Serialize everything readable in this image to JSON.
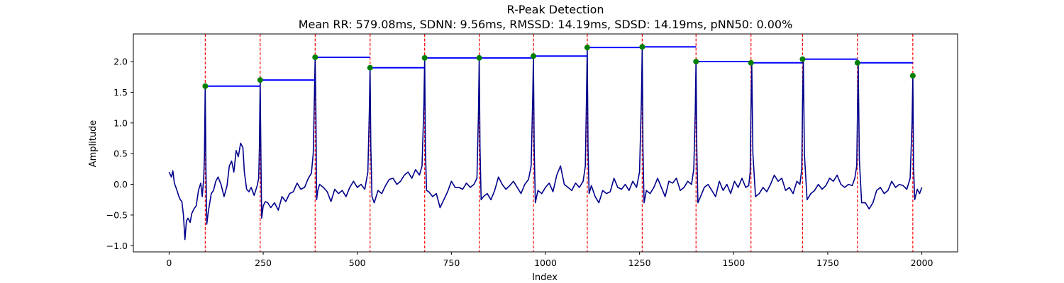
{
  "chart_data": {
    "type": "line",
    "title": "R-Peak Detection",
    "subtitle": "Mean RR: 579.08ms, SDNN: 9.56ms, RMSSD: 14.19ms, SDSD: 14.19ms, pNN50: 0.00%",
    "xlabel": "Index",
    "ylabel": "Amplitude",
    "xlim": [
      -95,
      2095
    ],
    "ylim": [
      -1.1,
      2.45
    ],
    "x_ticks": [
      0,
      250,
      500,
      750,
      1000,
      1250,
      1500,
      1750,
      2000
    ],
    "y_ticks": [
      -1.0,
      -0.5,
      0.0,
      0.5,
      1.0,
      1.5,
      2.0
    ],
    "grid": false,
    "colors": {
      "signal": "#00008b",
      "peaks": "#008000",
      "peak_lines": "#ff0000",
      "rr_segments": "#0000ff"
    },
    "r_peaks": {
      "x": [
        96,
        242,
        388,
        534,
        679,
        824,
        968,
        1111,
        1257,
        1400,
        1546,
        1683,
        1829,
        1976
      ],
      "y": [
        1.6,
        1.7,
        2.07,
        1.9,
        2.06,
        2.06,
        2.09,
        2.23,
        2.24,
        2.0,
        1.98,
        2.04,
        1.98,
        1.77
      ]
    },
    "signal": {
      "x": [
        0,
        6,
        10,
        14,
        18,
        22,
        26,
        30,
        34,
        38,
        42,
        46,
        50,
        56,
        60,
        66,
        72,
        78,
        84,
        88,
        92,
        94,
        96,
        98,
        100,
        104,
        108,
        112,
        118,
        124,
        130,
        138,
        146,
        154,
        160,
        166,
        172,
        178,
        184,
        190,
        196,
        200,
        206,
        212,
        218,
        226,
        234,
        238,
        240,
        242,
        244,
        246,
        250,
        256,
        262,
        270,
        280,
        290,
        300,
        310,
        320,
        330,
        340,
        350,
        360,
        370,
        378,
        383,
        386,
        388,
        390,
        392,
        395,
        400,
        410,
        420,
        430,
        440,
        450,
        460,
        470,
        480,
        490,
        500,
        510,
        520,
        528,
        532,
        534,
        536,
        539,
        545,
        555,
        565,
        575,
        585,
        595,
        605,
        615,
        625,
        635,
        645,
        655,
        665,
        672,
        677,
        679,
        681,
        684,
        690,
        700,
        710,
        720,
        730,
        740,
        750,
        760,
        770,
        780,
        790,
        800,
        810,
        818,
        822,
        824,
        826,
        829,
        835,
        845,
        855,
        865,
        875,
        885,
        895,
        905,
        915,
        925,
        935,
        945,
        955,
        962,
        966,
        968,
        970,
        973,
        980,
        990,
        1000,
        1010,
        1020,
        1030,
        1040,
        1050,
        1060,
        1070,
        1080,
        1090,
        1100,
        1106,
        1109,
        1111,
        1113,
        1116,
        1122,
        1132,
        1142,
        1152,
        1162,
        1172,
        1182,
        1192,
        1202,
        1212,
        1222,
        1232,
        1242,
        1250,
        1255,
        1257,
        1259,
        1262,
        1268,
        1278,
        1288,
        1298,
        1308,
        1318,
        1328,
        1338,
        1348,
        1358,
        1368,
        1378,
        1388,
        1394,
        1398,
        1400,
        1402,
        1405,
        1412,
        1422,
        1432,
        1442,
        1452,
        1462,
        1472,
        1482,
        1492,
        1502,
        1512,
        1522,
        1532,
        1540,
        1544,
        1546,
        1548,
        1551,
        1558,
        1568,
        1578,
        1588,
        1598,
        1608,
        1618,
        1628,
        1638,
        1648,
        1658,
        1668,
        1676,
        1681,
        1683,
        1685,
        1688,
        1695,
        1705,
        1715,
        1725,
        1735,
        1745,
        1755,
        1765,
        1775,
        1785,
        1795,
        1805,
        1815,
        1822,
        1827,
        1829,
        1831,
        1834,
        1840,
        1850,
        1860,
        1870,
        1880,
        1890,
        1900,
        1910,
        1920,
        1930,
        1940,
        1950,
        1960,
        1969,
        1974,
        1976,
        1978,
        1981,
        1988,
        1994,
        2000
      ],
      "y": [
        0.2,
        0.12,
        0.22,
        0.02,
        -0.05,
        -0.12,
        -0.2,
        -0.25,
        -0.28,
        -0.5,
        -0.9,
        -0.6,
        -0.55,
        -0.62,
        -0.48,
        -0.4,
        -0.35,
        -0.1,
        0.02,
        -0.2,
        0.1,
        0.5,
        1.6,
        0.2,
        -0.65,
        -0.45,
        -0.3,
        -0.15,
        -0.1,
        0.05,
        0.12,
        0.0,
        -0.2,
        -0.02,
        0.3,
        0.38,
        0.2,
        0.55,
        0.45,
        0.67,
        0.6,
        0.2,
        -0.08,
        -0.12,
        -0.05,
        -0.18,
        -0.02,
        0.1,
        0.6,
        1.7,
        0.4,
        -0.55,
        -0.35,
        -0.28,
        -0.3,
        -0.38,
        -0.3,
        -0.42,
        -0.2,
        -0.28,
        -0.15,
        -0.12,
        0.02,
        -0.08,
        -0.05,
        0.1,
        0.18,
        0.5,
        1.4,
        2.07,
        1.2,
        -0.25,
        -0.1,
        0.0,
        -0.05,
        -0.12,
        -0.28,
        -0.08,
        -0.15,
        -0.1,
        -0.2,
        -0.05,
        0.05,
        -0.05,
        0.0,
        -0.08,
        0.2,
        1.2,
        1.9,
        0.6,
        -0.2,
        -0.3,
        -0.1,
        -0.15,
        -0.02,
        0.08,
        0.1,
        0.0,
        0.05,
        0.15,
        0.2,
        0.1,
        0.24,
        0.15,
        0.3,
        1.3,
        2.06,
        0.6,
        -0.1,
        -0.12,
        -0.2,
        -0.15,
        -0.38,
        -0.25,
        -0.12,
        0.05,
        -0.05,
        -0.05,
        -0.08,
        0.02,
        -0.05,
        0.0,
        0.1,
        1.2,
        2.06,
        0.6,
        -0.25,
        -0.2,
        -0.15,
        -0.25,
        -0.1,
        0.12,
        0.0,
        -0.08,
        -0.02,
        0.05,
        -0.05,
        -0.15,
        0.0,
        0.08,
        0.3,
        1.4,
        2.09,
        0.6,
        -0.3,
        -0.1,
        -0.15,
        -0.05,
        0.02,
        -0.12,
        0.15,
        0.3,
        0.0,
        -0.05,
        -0.1,
        0.02,
        -0.05,
        0.05,
        0.3,
        1.4,
        2.23,
        0.6,
        -0.15,
        -0.02,
        -0.2,
        -0.3,
        -0.1,
        -0.15,
        -0.12,
        0.1,
        -0.05,
        -0.08,
        0.0,
        -0.1,
        0.05,
        -0.05,
        0.2,
        1.4,
        2.24,
        0.6,
        -0.3,
        -0.1,
        -0.15,
        -0.05,
        0.1,
        -0.05,
        -0.2,
        0.05,
        0.02,
        0.1,
        -0.1,
        -0.05,
        0.05,
        0.0,
        0.25,
        1.2,
        2.0,
        0.6,
        -0.3,
        -0.2,
        -0.05,
        0.0,
        -0.1,
        -0.2,
        0.05,
        -0.1,
        0.0,
        -0.15,
        0.05,
        -0.05,
        0.1,
        -0.05,
        -0.02,
        0.2,
        1.2,
        1.98,
        0.5,
        -0.2,
        -0.15,
        -0.05,
        -0.12,
        0.0,
        0.15,
        0.05,
        0.1,
        -0.1,
        -0.05,
        -0.15,
        0.05,
        0.0,
        0.25,
        1.3,
        2.04,
        0.5,
        -0.25,
        -0.15,
        -0.1,
        0.0,
        -0.08,
        -0.02,
        0.1,
        0.05,
        0.15,
        0.0,
        -0.05,
        0.0,
        -0.02,
        0.1,
        0.3,
        1.2,
        1.98,
        0.4,
        -0.3,
        -0.3,
        -0.4,
        -0.3,
        -0.1,
        -0.05,
        -0.15,
        -0.1,
        0.05,
        -0.05,
        0.0,
        -0.02,
        -0.08,
        0.1,
        1.0,
        1.77,
        0.3,
        -0.25,
        -0.08,
        -0.15,
        -0.05
      ]
    }
  }
}
